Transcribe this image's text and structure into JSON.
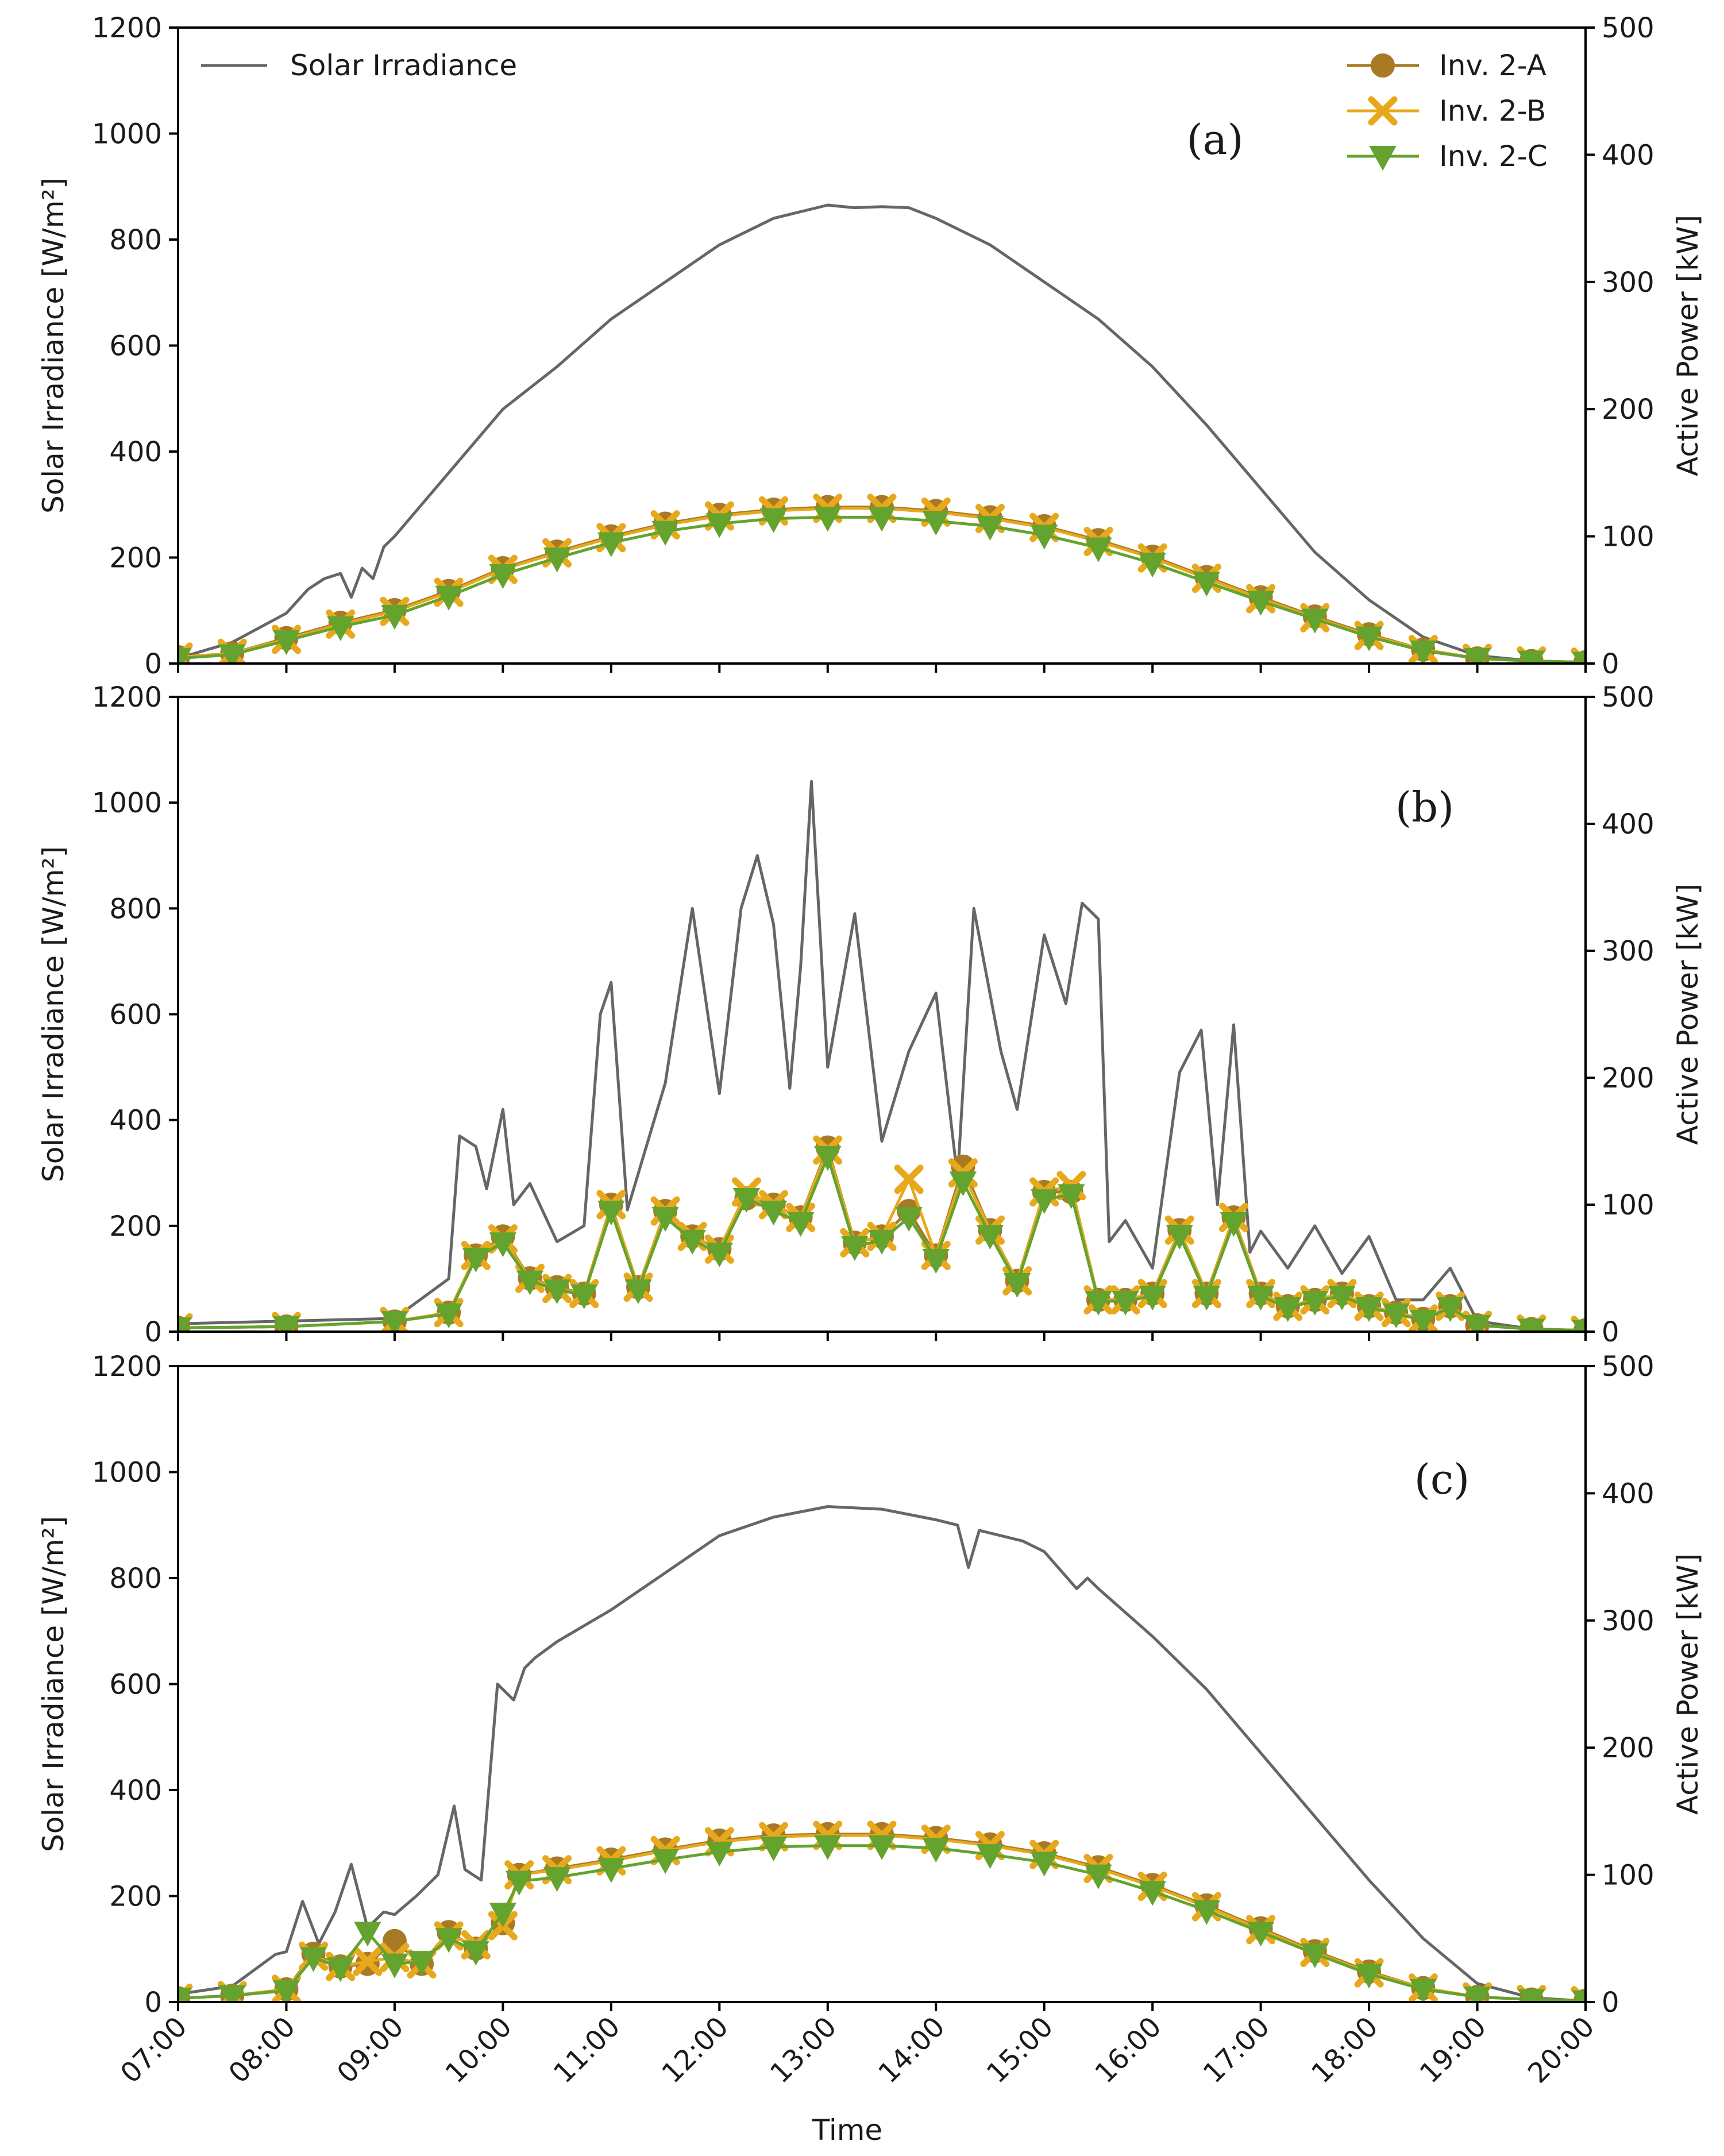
{
  "chart_data": [
    {
      "type": "line",
      "panel_label": "(a)",
      "ylabel_left": "Solar Irradiance [W/m²]",
      "ylabel_right": "Active Power [kW]",
      "xlabel": "",
      "ylim_left": [
        0,
        1200
      ],
      "ylim_right": [
        0,
        500
      ],
      "xlim_hours": [
        7,
        20
      ],
      "x_ticks": [
        "07:00",
        "08:00",
        "09:00",
        "10:00",
        "11:00",
        "12:00",
        "13:00",
        "14:00",
        "15:00",
        "16:00",
        "17:00",
        "18:00",
        "19:00",
        "20:00"
      ],
      "y_ticks_left": [
        "0",
        "200",
        "400",
        "600",
        "800",
        "1000",
        "1200"
      ],
      "y_ticks_right": [
        "0",
        "100",
        "200",
        "300",
        "400",
        "500"
      ],
      "legend": {
        "irradiance_label": "Solar Irradiance",
        "irradiance_placement": "top-left",
        "series_labels": [
          "Inv. 2-A",
          "Inv. 2-B",
          "Inv. 2-C"
        ],
        "series_placement": "top-right"
      },
      "irradiance": {
        "name": "Solar Irradiance",
        "color": "#666666",
        "x_hours": [
          7.0,
          7.5,
          8.0,
          8.2,
          8.35,
          8.5,
          8.6,
          8.7,
          8.8,
          8.9,
          9.0,
          9.5,
          10.0,
          10.5,
          11.0,
          11.5,
          12.0,
          12.5,
          13.0,
          13.25,
          13.5,
          13.75,
          14.0,
          14.5,
          15.0,
          15.5,
          16.0,
          16.5,
          17.0,
          17.5,
          18.0,
          18.5,
          19.0,
          19.5,
          20.0
        ],
        "values": [
          10,
          40,
          95,
          140,
          160,
          170,
          125,
          180,
          160,
          220,
          240,
          360,
          480,
          560,
          650,
          720,
          790,
          840,
          865,
          860,
          862,
          860,
          840,
          790,
          720,
          650,
          560,
          450,
          330,
          210,
          120,
          50,
          15,
          5,
          2
        ]
      },
      "series": [
        {
          "name": "Inv. 2-A",
          "color": "#a87a24",
          "marker": "circle",
          "x_hours": [
            7.0,
            7.5,
            8.0,
            8.5,
            9.0,
            9.5,
            10.0,
            10.5,
            11.0,
            11.5,
            12.0,
            12.5,
            13.0,
            13.5,
            14.0,
            14.5,
            15.0,
            15.5,
            16.0,
            16.5,
            17.0,
            17.5,
            18.0,
            18.5,
            19.0,
            19.5,
            20.0
          ],
          "values": [
            5,
            8,
            20,
            32,
            42,
            57,
            75,
            88,
            100,
            110,
            117,
            121,
            123,
            123,
            120,
            115,
            108,
            97,
            84,
            68,
            52,
            37,
            23,
            11,
            4,
            2,
            1
          ]
        },
        {
          "name": "Inv. 2-B",
          "color": "#e8a81c",
          "marker": "x",
          "x_hours": [
            7.0,
            7.5,
            8.0,
            8.5,
            9.0,
            9.5,
            10.0,
            10.5,
            11.0,
            11.5,
            12.0,
            12.5,
            13.0,
            13.5,
            14.0,
            14.5,
            15.0,
            15.5,
            16.0,
            16.5,
            17.0,
            17.5,
            18.0,
            18.5,
            19.0,
            19.5,
            20.0
          ],
          "values": [
            5,
            8,
            19,
            31,
            41,
            56,
            74,
            87,
            99,
            109,
            116,
            120,
            122,
            122,
            119,
            114,
            107,
            96,
            83,
            67,
            51,
            36,
            22,
            11,
            4,
            2,
            1
          ]
        },
        {
          "name": "Inv. 2-C",
          "color": "#63a32e",
          "marker": "triangle-down",
          "x_hours": [
            7.0,
            7.5,
            8.0,
            8.5,
            9.0,
            9.5,
            10.0,
            10.5,
            11.0,
            11.5,
            12.0,
            12.5,
            13.0,
            13.5,
            14.0,
            14.5,
            15.0,
            15.5,
            16.0,
            16.5,
            17.0,
            17.5,
            18.0,
            18.5,
            19.0,
            19.5,
            20.0
          ],
          "values": [
            4,
            7,
            18,
            29,
            38,
            53,
            70,
            83,
            95,
            104,
            110,
            114,
            115,
            115,
            112,
            108,
            101,
            91,
            79,
            64,
            49,
            35,
            21,
            10,
            4,
            2,
            1
          ]
        }
      ]
    },
    {
      "type": "line",
      "panel_label": "(b)",
      "ylabel_left": "Solar Irradiance [W/m²]",
      "ylabel_right": "Active Power [kW]",
      "xlabel": "",
      "ylim_left": [
        0,
        1200
      ],
      "ylim_right": [
        0,
        500
      ],
      "xlim_hours": [
        7,
        20
      ],
      "x_ticks": [
        "07:00",
        "08:00",
        "09:00",
        "10:00",
        "11:00",
        "12:00",
        "13:00",
        "14:00",
        "15:00",
        "16:00",
        "17:00",
        "18:00",
        "19:00",
        "20:00"
      ],
      "y_ticks_left": [
        "0",
        "200",
        "400",
        "600",
        "800",
        "1000",
        "1200"
      ],
      "y_ticks_right": [
        "0",
        "100",
        "200",
        "300",
        "400",
        "500"
      ],
      "irradiance": {
        "name": "Solar Irradiance",
        "color": "#666666",
        "x_hours": [
          7.0,
          8.0,
          9.0,
          9.5,
          9.6,
          9.75,
          9.85,
          10.0,
          10.1,
          10.25,
          10.5,
          10.75,
          10.9,
          11.0,
          11.15,
          11.5,
          11.75,
          12.0,
          12.2,
          12.35,
          12.5,
          12.65,
          12.75,
          12.85,
          13.0,
          13.25,
          13.5,
          13.75,
          14.0,
          14.2,
          14.35,
          14.6,
          14.75,
          15.0,
          15.2,
          15.35,
          15.5,
          15.6,
          15.75,
          16.0,
          16.25,
          16.45,
          16.6,
          16.75,
          16.9,
          17.0,
          17.25,
          17.5,
          17.75,
          18.0,
          18.25,
          18.5,
          18.75,
          19.0,
          19.5,
          20.0
        ],
        "values": [
          15,
          20,
          25,
          100,
          370,
          350,
          270,
          420,
          240,
          280,
          170,
          200,
          600,
          660,
          230,
          470,
          800,
          450,
          800,
          900,
          770,
          460,
          690,
          1040,
          500,
          790,
          360,
          530,
          640,
          290,
          800,
          530,
          420,
          750,
          620,
          810,
          780,
          170,
          210,
          120,
          490,
          570,
          240,
          580,
          150,
          190,
          120,
          200,
          110,
          180,
          60,
          60,
          120,
          20,
          5,
          2
        ]
      },
      "series": [
        {
          "name": "Inv. 2-A",
          "color": "#a87a24",
          "marker": "circle",
          "x_hours": [
            7.0,
            8.0,
            9.0,
            9.5,
            9.75,
            10.0,
            10.25,
            10.5,
            10.75,
            11.0,
            11.25,
            11.5,
            11.75,
            12.0,
            12.25,
            12.5,
            12.75,
            13.0,
            13.25,
            13.5,
            13.75,
            14.0,
            14.25,
            14.5,
            14.75,
            15.0,
            15.25,
            15.5,
            15.75,
            16.0,
            16.25,
            16.5,
            16.75,
            17.0,
            17.25,
            17.5,
            17.75,
            18.0,
            18.25,
            18.5,
            18.75,
            19.0,
            19.5,
            20.0
          ],
          "values": [
            3,
            4,
            8,
            15,
            60,
            75,
            42,
            35,
            30,
            100,
            35,
            95,
            75,
            65,
            105,
            100,
            90,
            145,
            70,
            75,
            95,
            60,
            130,
            80,
            40,
            110,
            110,
            25,
            25,
            30,
            80,
            30,
            90,
            30,
            20,
            25,
            30,
            20,
            15,
            10,
            20,
            5,
            2,
            1
          ]
        },
        {
          "name": "Inv. 2-B",
          "color": "#e8a81c",
          "marker": "x",
          "x_hours": [
            7.0,
            8.0,
            9.0,
            9.5,
            9.75,
            10.0,
            10.25,
            10.5,
            10.75,
            11.0,
            11.25,
            11.5,
            11.75,
            12.0,
            12.25,
            12.5,
            12.75,
            13.0,
            13.25,
            13.5,
            13.75,
            14.0,
            14.25,
            14.5,
            14.75,
            15.0,
            15.25,
            15.5,
            15.75,
            16.0,
            16.25,
            16.5,
            16.75,
            17.0,
            17.25,
            17.5,
            17.75,
            18.0,
            18.25,
            18.5,
            18.75,
            19.0,
            19.5,
            20.0
          ],
          "values": [
            3,
            4,
            8,
            15,
            60,
            73,
            42,
            34,
            30,
            100,
            35,
            95,
            75,
            65,
            110,
            100,
            90,
            143,
            70,
            75,
            120,
            60,
            125,
            80,
            40,
            110,
            115,
            25,
            25,
            30,
            80,
            30,
            90,
            30,
            20,
            25,
            30,
            20,
            15,
            10,
            20,
            5,
            2,
            1
          ]
        },
        {
          "name": "Inv. 2-C",
          "color": "#63a32e",
          "marker": "triangle-down",
          "x_hours": [
            7.0,
            8.0,
            9.0,
            9.5,
            9.75,
            10.0,
            10.25,
            10.5,
            10.75,
            11.0,
            11.25,
            11.5,
            11.75,
            12.0,
            12.25,
            12.5,
            12.75,
            13.0,
            13.25,
            13.5,
            13.75,
            14.0,
            14.25,
            14.5,
            14.75,
            15.0,
            15.25,
            15.5,
            15.75,
            16.0,
            16.25,
            16.5,
            16.75,
            17.0,
            17.25,
            17.5,
            17.75,
            18.0,
            18.25,
            18.5,
            18.75,
            19.0,
            19.5,
            20.0
          ],
          "values": [
            3,
            4,
            8,
            14,
            58,
            70,
            40,
            33,
            29,
            95,
            33,
            90,
            72,
            62,
            105,
            95,
            86,
            138,
            67,
            72,
            90,
            57,
            118,
            76,
            38,
            104,
            108,
            24,
            24,
            28,
            76,
            28,
            86,
            28,
            19,
            24,
            28,
            19,
            14,
            9,
            19,
            5,
            2,
            1
          ]
        }
      ]
    },
    {
      "type": "line",
      "panel_label": "(c)",
      "ylabel_left": "Solar Irradiance [W/m²]",
      "ylabel_right": "Active Power [kW]",
      "xlabel": "Time",
      "ylim_left": [
        0,
        1200
      ],
      "ylim_right": [
        0,
        500
      ],
      "xlim_hours": [
        7,
        20
      ],
      "x_ticks": [
        "07:00",
        "08:00",
        "09:00",
        "10:00",
        "11:00",
        "12:00",
        "13:00",
        "14:00",
        "15:00",
        "16:00",
        "17:00",
        "18:00",
        "19:00",
        "20:00"
      ],
      "y_ticks_left": [
        "0",
        "200",
        "400",
        "600",
        "800",
        "1000",
        "1200"
      ],
      "y_ticks_right": [
        "0",
        "100",
        "200",
        "300",
        "400",
        "500"
      ],
      "irradiance": {
        "name": "Solar Irradiance",
        "color": "#666666",
        "x_hours": [
          7.0,
          7.5,
          7.9,
          8.0,
          8.15,
          8.3,
          8.45,
          8.6,
          8.75,
          8.9,
          9.0,
          9.2,
          9.4,
          9.55,
          9.65,
          9.8,
          9.95,
          10.1,
          10.2,
          10.3,
          10.5,
          11.0,
          11.5,
          12.0,
          12.5,
          13.0,
          13.5,
          14.0,
          14.2,
          14.3,
          14.4,
          14.6,
          14.8,
          15.0,
          15.3,
          15.4,
          15.5,
          16.0,
          16.5,
          17.0,
          17.5,
          18.0,
          18.5,
          19.0,
          19.5,
          20.0
        ],
        "values": [
          15,
          30,
          90,
          95,
          190,
          110,
          170,
          260,
          140,
          170,
          165,
          200,
          240,
          370,
          250,
          230,
          600,
          570,
          630,
          650,
          680,
          740,
          810,
          880,
          915,
          935,
          930,
          910,
          900,
          820,
          890,
          880,
          870,
          850,
          780,
          800,
          780,
          690,
          590,
          470,
          350,
          230,
          120,
          35,
          8,
          2
        ]
      },
      "series": [
        {
          "name": "Inv. 2-A",
          "color": "#a87a24",
          "marker": "circle",
          "x_hours": [
            7.0,
            7.5,
            8.0,
            8.25,
            8.5,
            8.75,
            9.0,
            9.25,
            9.5,
            9.75,
            10.0,
            10.15,
            10.5,
            11.0,
            11.5,
            12.0,
            12.5,
            13.0,
            13.5,
            14.0,
            14.5,
            15.0,
            15.5,
            16.0,
            16.5,
            17.0,
            17.5,
            18.0,
            18.5,
            19.0,
            19.5,
            20.0
          ],
          "values": [
            3,
            5,
            10,
            38,
            28,
            30,
            48,
            30,
            55,
            42,
            62,
            100,
            105,
            112,
            120,
            127,
            131,
            132,
            132,
            129,
            124,
            117,
            106,
            92,
            76,
            58,
            40,
            24,
            11,
            4,
            2,
            1
          ]
        },
        {
          "name": "Inv. 2-B",
          "color": "#e8a81c",
          "marker": "x",
          "x_hours": [
            7.0,
            7.5,
            8.0,
            8.25,
            8.5,
            8.75,
            9.0,
            9.25,
            9.5,
            9.75,
            10.0,
            10.15,
            10.5,
            11.0,
            11.5,
            12.0,
            12.5,
            13.0,
            13.5,
            14.0,
            14.5,
            15.0,
            15.5,
            16.0,
            16.5,
            17.0,
            17.5,
            18.0,
            18.5,
            19.0,
            19.5,
            20.0
          ],
          "values": [
            3,
            5,
            10,
            36,
            28,
            32,
            35,
            30,
            52,
            45,
            60,
            100,
            104,
            111,
            119,
            126,
            130,
            131,
            131,
            128,
            123,
            116,
            105,
            91,
            75,
            57,
            39,
            23,
            11,
            4,
            2,
            1
          ]
        },
        {
          "name": "Inv. 2-C",
          "color": "#63a32e",
          "marker": "triangle-down",
          "x_hours": [
            7.0,
            7.5,
            8.0,
            8.25,
            8.5,
            8.75,
            9.0,
            9.25,
            9.5,
            9.75,
            10.0,
            10.15,
            10.5,
            11.0,
            11.5,
            12.0,
            12.5,
            13.0,
            13.5,
            14.0,
            14.5,
            15.0,
            15.5,
            16.0,
            16.5,
            17.0,
            17.5,
            18.0,
            18.5,
            19.0,
            19.5,
            20.0
          ],
          "values": [
            3,
            5,
            9,
            35,
            27,
            55,
            30,
            32,
            50,
            40,
            70,
            95,
            98,
            105,
            112,
            118,
            122,
            123,
            123,
            121,
            116,
            110,
            100,
            87,
            72,
            55,
            38,
            22,
            10,
            4,
            2,
            1
          ]
        }
      ]
    }
  ]
}
